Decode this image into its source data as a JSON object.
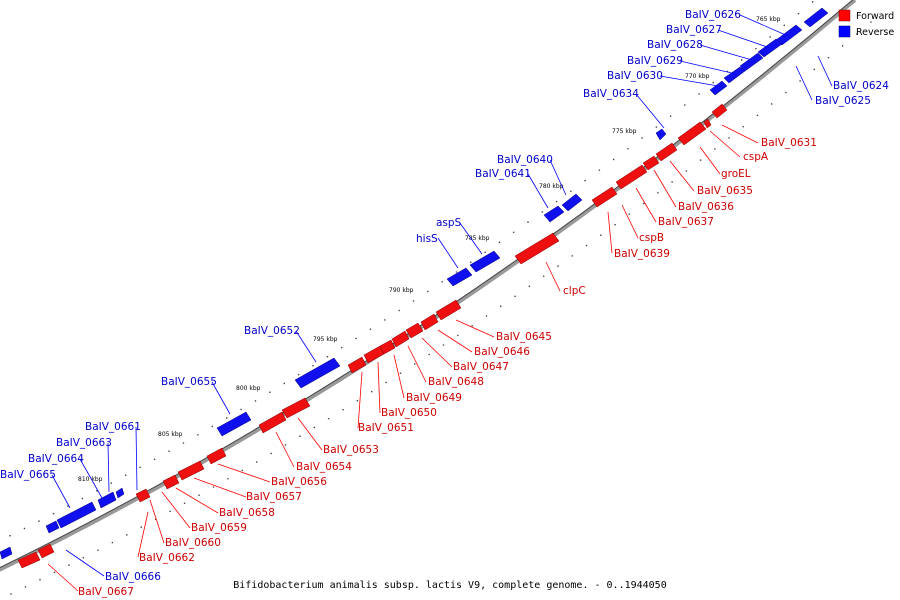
{
  "caption": "Bifidobacterium animalis subsp. lactis V9, complete genome. - 0..1944050",
  "legend": [
    {
      "label": "Forward",
      "color": "#ff0000"
    },
    {
      "label": "Reverse",
      "color": "#0000ff"
    }
  ],
  "colors": {
    "forward": "#ff0000",
    "reverse": "#0000ff",
    "backbone": "#888888"
  },
  "kbp_marks": [
    "765 kbp",
    "770 kbp",
    "775 kbp",
    "780 kbp",
    "785 kbp",
    "790 kbp",
    "795 kbp",
    "800 kbp",
    "805 kbp",
    "810 kbp"
  ],
  "genes_reverse": [
    "BaIV_0626",
    "BaIV_0627",
    "BaIV_0628",
    "BaIV_0629",
    "BaIV_0630",
    "BaIV_0634",
    "BaIV_0640",
    "BaIV_0641",
    "aspS",
    "hisS",
    "BaIV_0652",
    "BaIV_0655",
    "BaIV_0661",
    "BaIV_0663",
    "BaIV_0664",
    "BaIV_0665",
    "BaIV_0666",
    "BaIV_0624",
    "BaIV_0625"
  ],
  "genes_forward": [
    "BaIV_0631",
    "cspA",
    "groEL",
    "BaIV_0635",
    "BaIV_0636",
    "BaIV_0637",
    "cspB",
    "BaIV_0639",
    "clpC",
    "BaIV_0645",
    "BaIV_0646",
    "BaIV_0647",
    "BaIV_0648",
    "BaIV_0649",
    "BaIV_0650",
    "BaIV_0651",
    "BaIV_0653",
    "BaIV_0654",
    "BaIV_0656",
    "BaIV_0657",
    "BaIV_0658",
    "BaIV_0659",
    "BaIV_0660",
    "BaIV_0662",
    "BaIV_0667"
  ]
}
